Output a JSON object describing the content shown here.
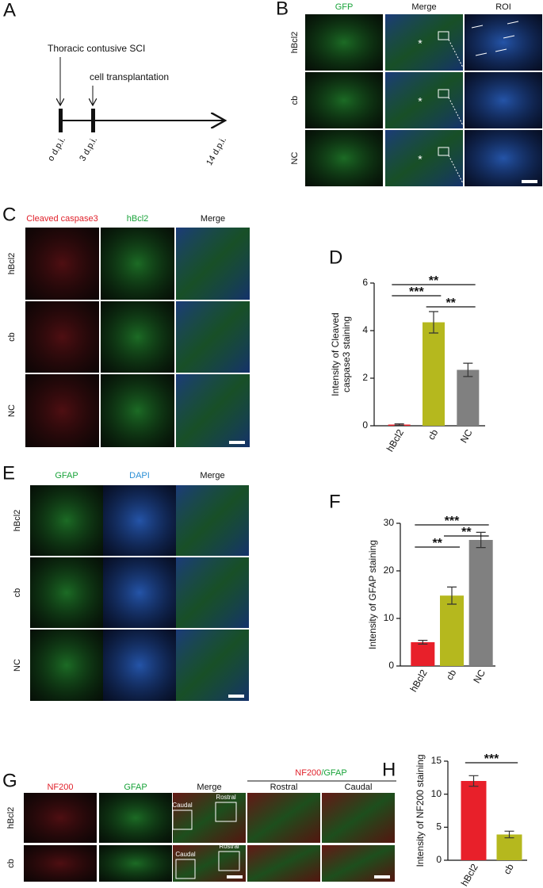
{
  "panel_labels": [
    "A",
    "B",
    "C",
    "D",
    "E",
    "F",
    "G",
    "H"
  ],
  "timeline": {
    "events": [
      "Thoracic contusive SCI",
      "cell transplantation"
    ],
    "days": [
      "o d.p.i.",
      "3 d.p.i.",
      "14 d.p.i."
    ]
  },
  "panel_b": {
    "columns": [
      "GFP",
      "Merge",
      "ROI"
    ],
    "rows": [
      "hBcl2",
      "cb",
      "NC"
    ],
    "marker": "*"
  },
  "panel_c": {
    "columns": [
      "Cleaved caspase3",
      "hBcl2",
      "Merge"
    ],
    "rows": [
      "hBcl2",
      "cb",
      "NC"
    ]
  },
  "panel_e": {
    "columns": [
      "GFAP",
      "DAPI",
      "Merge"
    ],
    "rows": [
      "hBcl2",
      "cb",
      "NC"
    ]
  },
  "panel_g": {
    "columns": [
      "NF200",
      "GFAP",
      "Merge"
    ],
    "group_title": [
      "NF200",
      "/GFAP"
    ],
    "group_columns": [
      "Rostral",
      "Caudal"
    ],
    "rows": [
      "hBcl2",
      "cb"
    ],
    "box_labels": [
      "Caudal",
      "Rostral"
    ]
  },
  "chart_data": [
    {
      "type": "bar",
      "ylabel_lines": [
        "Intensity of Cleaved",
        "caspase3 staining"
      ],
      "categories": [
        "hBcl2",
        "cb",
        "NC"
      ],
      "values": [
        0.05,
        4.35,
        2.35
      ],
      "errors": [
        0.03,
        0.45,
        0.28
      ],
      "colors": [
        "#e8202a",
        "#b5b81e",
        "#808080"
      ],
      "ylim": [
        0,
        6
      ],
      "yticks": [
        0,
        2,
        4,
        6
      ],
      "significance": [
        {
          "pair": [
            "hBcl2",
            "NC"
          ],
          "label": "**"
        },
        {
          "pair": [
            "hBcl2",
            "cb"
          ],
          "label": "***"
        },
        {
          "pair": [
            "cb",
            "NC"
          ],
          "label": "**"
        }
      ]
    },
    {
      "type": "bar",
      "ylabel_lines": [
        "Intensity of GFAP staining"
      ],
      "categories": [
        "hBcl2",
        "cb",
        "NC"
      ],
      "values": [
        5.0,
        14.8,
        26.5
      ],
      "errors": [
        0.4,
        1.8,
        1.6
      ],
      "colors": [
        "#e8202a",
        "#b5b81e",
        "#808080"
      ],
      "ylim": [
        0,
        30
      ],
      "yticks": [
        0,
        10,
        20,
        30
      ],
      "significance": [
        {
          "pair": [
            "hBcl2",
            "NC"
          ],
          "label": "***"
        },
        {
          "pair": [
            "cb",
            "NC"
          ],
          "label": "**"
        },
        {
          "pair": [
            "hBcl2",
            "cb"
          ],
          "label": "**"
        }
      ]
    },
    {
      "type": "bar",
      "ylabel_lines": [
        "Intensity of NF200 staining"
      ],
      "categories": [
        "hBcl2",
        "cb"
      ],
      "values": [
        12.0,
        3.9
      ],
      "errors": [
        0.8,
        0.5
      ],
      "colors": [
        "#e8202a",
        "#b5b81e"
      ],
      "ylim": [
        0,
        15
      ],
      "yticks": [
        0,
        5,
        10,
        15
      ],
      "significance": [
        {
          "pair": [
            "hBcl2",
            "cb"
          ],
          "label": "***"
        }
      ]
    }
  ]
}
